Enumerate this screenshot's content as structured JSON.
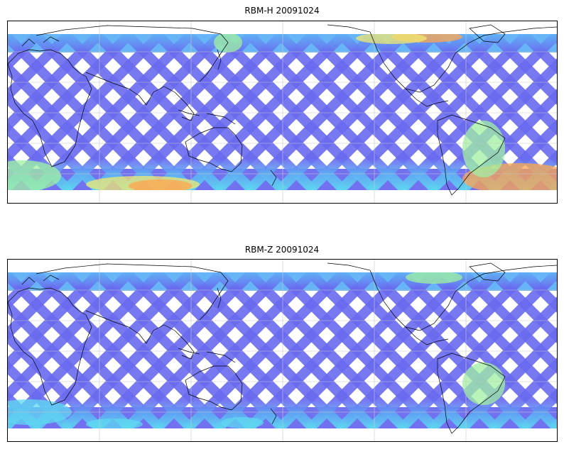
{
  "panels": [
    {
      "id": "top",
      "title": "RBM-H 20091024",
      "swath_color": "#6a6af0",
      "hot_regions": [
        {
          "area": "southern-ocean-west",
          "color": "#7ee0c0"
        },
        {
          "area": "southern-ocean-south-america",
          "color": "#ffa64d"
        },
        {
          "area": "north-pacific-arctic",
          "color": "#ffa64d"
        }
      ]
    },
    {
      "id": "bottom",
      "title": "RBM-Z 20091024",
      "swath_color": "#6a6af0",
      "hot_regions": [
        {
          "area": "southern-ocean-west",
          "color": "#5fd0f0"
        },
        {
          "area": "south-atlantic",
          "color": "#a0f0a0"
        },
        {
          "area": "north-atlantic",
          "color": "#a0f0a0"
        }
      ]
    }
  ],
  "colors": {
    "swath_low": "#6a6af0",
    "swath_mid": "#5fb0f5",
    "swath_cyan": "#5fd8f0",
    "swath_green": "#a0f0a0",
    "swath_yellow": "#f0e870",
    "swath_orange": "#ffa64d",
    "coast": "#000000",
    "grid": "#c8c8c8"
  }
}
